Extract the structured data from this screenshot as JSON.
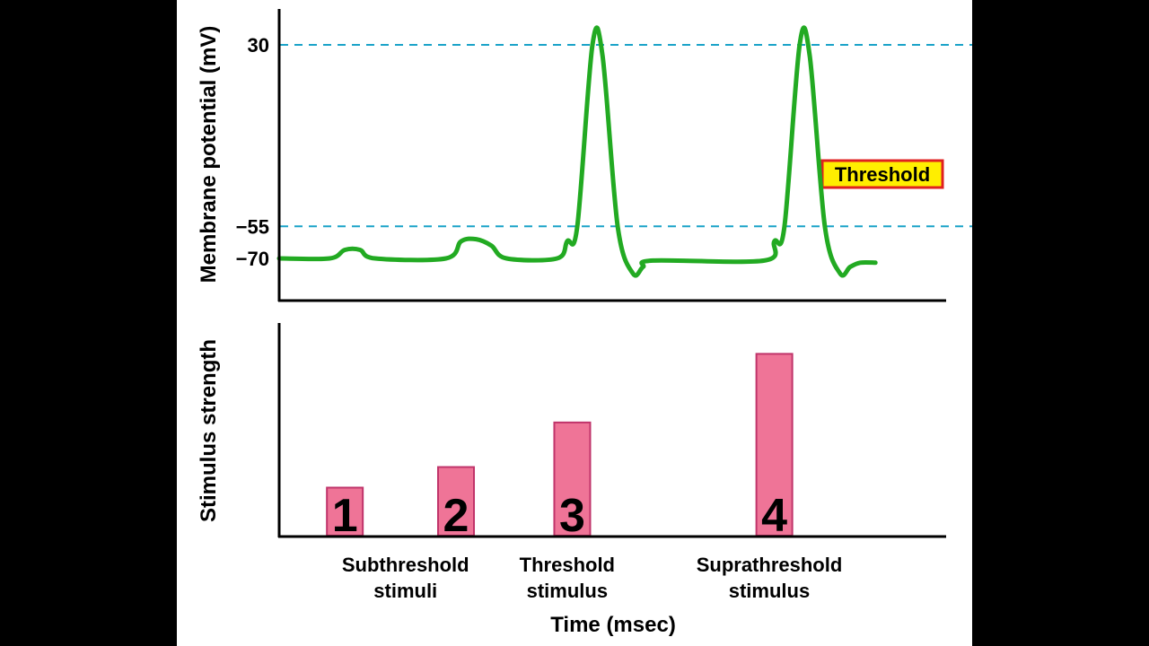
{
  "chart_data": [
    {
      "type": "line",
      "ylabel": "Membrane potential (mV)",
      "yticks": [
        "30",
        "−55",
        "−70"
      ],
      "y_values": [
        30,
        -55,
        -70
      ],
      "reference_lines": [
        {
          "value": 30
        },
        {
          "value": -55,
          "label": "Threshold"
        }
      ],
      "series": [
        {
          "points": [
            [
              0,
              -70
            ],
            [
              10,
              -70
            ],
            [
              13,
              -66
            ],
            [
              16,
              -66
            ],
            [
              19,
              -70
            ],
            [
              33,
              -70
            ],
            [
              36,
              -62
            ],
            [
              39,
              -61
            ],
            [
              42,
              -64
            ],
            [
              45,
              -70
            ],
            [
              55,
              -70
            ],
            [
              57,
              -62
            ],
            [
              59,
              -55
            ],
            [
              62,
              30
            ],
            [
              64,
              25
            ],
            [
              67,
              -55
            ],
            [
              70,
              -77
            ],
            [
              72,
              -74
            ],
            [
              74,
              -71
            ],
            [
              96,
              -71
            ],
            [
              98,
              -62
            ],
            [
              100,
              -55
            ],
            [
              103,
              30
            ],
            [
              105,
              25
            ],
            [
              108,
              -55
            ],
            [
              111,
              -77
            ],
            [
              113,
              -74
            ],
            [
              115,
              -72
            ],
            [
              118,
              -72
            ]
          ]
        }
      ],
      "xlim": [
        0,
        132
      ],
      "ylim": [
        -80,
        40
      ],
      "grid": false,
      "line_color": "#22aa22",
      "dash_color": "#1aa3c8",
      "threshold_badge_fill": "#ffee00",
      "threshold_badge_border": "#e02020"
    },
    {
      "type": "bar",
      "ylabel": "Stimulus strength",
      "xlabel": "Time (msec)",
      "bar_labels": [
        "1",
        "2",
        "3",
        "4"
      ],
      "bar_x": [
        13,
        35,
        58,
        98
      ],
      "values": [
        14,
        20,
        33,
        53
      ],
      "ylim": [
        0,
        62
      ],
      "xlim": [
        0,
        132
      ],
      "group_labels": [
        {
          "lines": [
            "Subthreshold",
            "stimuli"
          ],
          "x": 25
        },
        {
          "lines": [
            "Threshold",
            "stimulus"
          ],
          "x": 57
        },
        {
          "lines": [
            "Suprathreshold",
            "stimulus"
          ],
          "x": 97
        }
      ],
      "bar_fill": "#ef7497",
      "bar_stroke": "#c0346a"
    }
  ]
}
